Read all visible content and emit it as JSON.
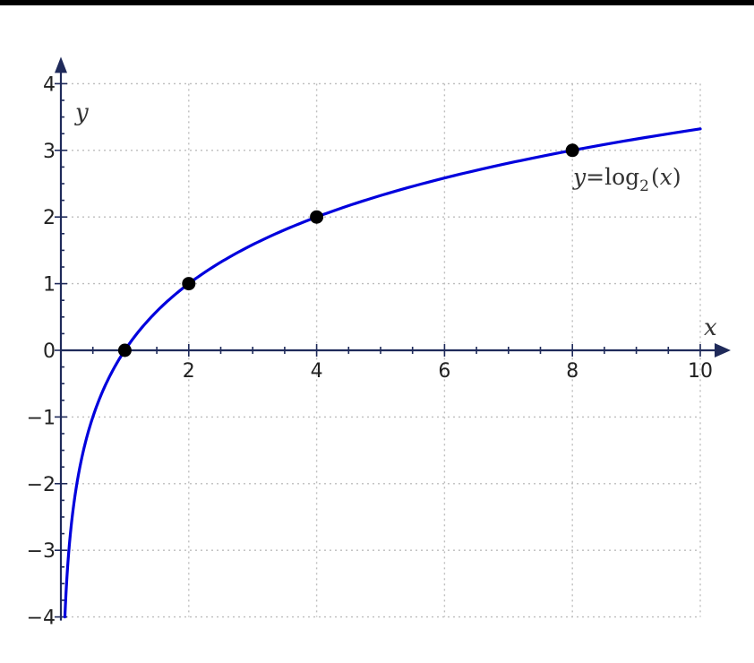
{
  "chart_data": {
    "type": "line",
    "title": "",
    "xlabel": "x",
    "ylabel": "y",
    "xlim": [
      0,
      10
    ],
    "ylim": [
      -4,
      4
    ],
    "xticks": [
      2,
      4,
      6,
      8,
      10
    ],
    "yticks": [
      -4,
      -3,
      -2,
      -1,
      0,
      1,
      2,
      3,
      4
    ],
    "grid": true,
    "function": "log2(x)",
    "series": [
      {
        "x": [
          0.0625,
          0.1,
          0.15,
          0.2,
          0.3,
          0.5,
          0.75,
          1,
          1.5,
          2,
          2.5,
          3,
          4,
          5,
          6,
          7,
          8,
          9,
          10
        ],
        "y": [
          -4,
          -3.32,
          -2.74,
          -2.32,
          -1.74,
          -1,
          -0.42,
          0,
          0.58,
          1,
          1.32,
          1.58,
          2,
          2.32,
          2.58,
          2.81,
          3,
          3.17,
          3.32
        ],
        "color": "#0000dd"
      }
    ],
    "highlighted_points": [
      {
        "x": 1,
        "y": 0
      },
      {
        "x": 2,
        "y": 1
      },
      {
        "x": 4,
        "y": 2
      },
      {
        "x": 8,
        "y": 3
      }
    ],
    "annotation": {
      "y_var": "y",
      "eq": "=",
      "fn": "log",
      "base": "2",
      "open": "(",
      "arg": "x",
      "close": ")"
    },
    "colors": {
      "curve": "#0000dd",
      "axis": "#1f2a5a",
      "grid": "#bdbdbd",
      "points": "#000000"
    }
  }
}
